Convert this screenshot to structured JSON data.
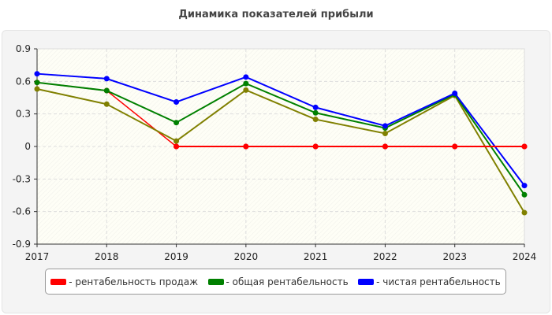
{
  "chart_data": {
    "type": "line",
    "title": "Динамика показателей прибыли",
    "categories": [
      "2017",
      "2018",
      "2019",
      "2020",
      "2021",
      "2022",
      "2023",
      "2024"
    ],
    "ylim": [
      -0.9,
      0.9
    ],
    "yticks": [
      "0.9",
      "0.6",
      "0.3",
      "0",
      "-0.3",
      "-0.6",
      "-0.9"
    ],
    "grid": true,
    "legend_position": "bottom",
    "series": [
      {
        "name": "- рентабельность продаж",
        "color": "#ff0000",
        "values": [
          0.59,
          0.515,
          0,
          0,
          0,
          0,
          0,
          0
        ]
      },
      {
        "color": "#808000",
        "values": [
          0.53,
          0.39,
          0.05,
          0.52,
          0.25,
          0.12,
          0.47,
          -0.61
        ]
      },
      {
        "name": "- общая рентабельность",
        "color": "#008000",
        "values": [
          0.59,
          0.515,
          0.22,
          0.58,
          0.31,
          0.17,
          0.48,
          -0.445
        ]
      },
      {
        "name": "- чистая рентабельность",
        "color": "#0000ff",
        "values": [
          0.67,
          0.625,
          0.41,
          0.64,
          0.36,
          0.19,
          0.49,
          -0.36
        ]
      }
    ]
  }
}
